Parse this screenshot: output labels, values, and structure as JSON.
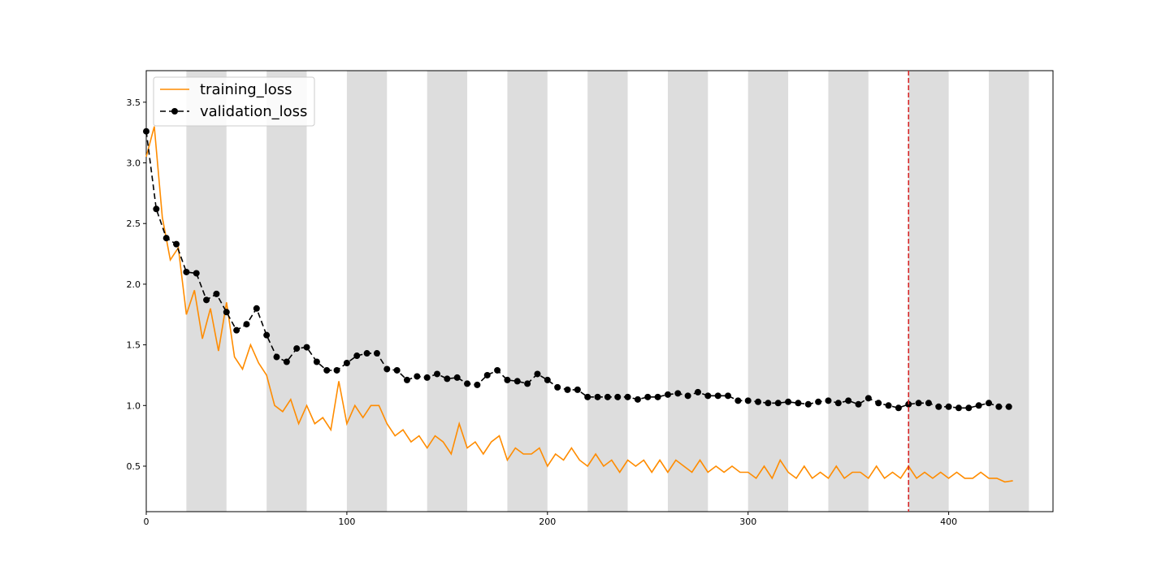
{
  "chart_data": {
    "type": "line",
    "xlim": [
      0,
      452
    ],
    "ylim": [
      0.125,
      3.76
    ],
    "xticks": [
      0,
      100,
      200,
      300,
      400
    ],
    "yticks": [
      {
        "value": 0.5,
        "label": "0.5"
      },
      {
        "value": 1,
        "label": "1.0"
      },
      {
        "value": 1.5,
        "label": "1.5"
      },
      {
        "value": 2,
        "label": "2.0"
      },
      {
        "value": 2.5,
        "label": "2.5"
      },
      {
        "value": 3,
        "label": "3.0"
      },
      {
        "value": 3.5,
        "label": "3.5"
      }
    ],
    "shaded_spans": [
      [
        20,
        40
      ],
      [
        60,
        80
      ],
      [
        100,
        120
      ],
      [
        140,
        160
      ],
      [
        180,
        200
      ],
      [
        220,
        240
      ],
      [
        260,
        280
      ],
      [
        300,
        320
      ],
      [
        340,
        360
      ],
      [
        380,
        400
      ],
      [
        420,
        440
      ]
    ],
    "shaded_color": "#dddddd",
    "vline": {
      "x": 380,
      "color": "#d62728"
    },
    "legend": "upper left",
    "series": [
      {
        "name": "training_loss",
        "color": "#ff8c00",
        "style": "solid",
        "x": [
          0,
          4,
          8,
          12,
          16,
          20,
          24,
          28,
          32,
          36,
          40,
          44,
          48,
          52,
          56,
          60,
          64,
          68,
          72,
          76,
          80,
          84,
          88,
          92,
          96,
          100,
          104,
          108,
          112,
          116,
          120,
          124,
          128,
          132,
          136,
          140,
          144,
          148,
          152,
          156,
          160,
          164,
          168,
          172,
          176,
          180,
          184,
          188,
          192,
          196,
          200,
          204,
          208,
          212,
          216,
          220,
          224,
          228,
          232,
          236,
          240,
          244,
          248,
          252,
          256,
          260,
          264,
          268,
          272,
          276,
          280,
          284,
          288,
          292,
          296,
          300,
          304,
          308,
          312,
          316,
          320,
          324,
          328,
          332,
          336,
          340,
          344,
          348,
          352,
          356,
          360,
          364,
          368,
          372,
          376,
          380,
          384,
          388,
          392,
          396,
          400,
          404,
          408,
          412,
          416,
          420,
          424,
          428,
          432
        ],
        "values": [
          3.05,
          3.3,
          2.55,
          2.2,
          2.3,
          1.75,
          1.95,
          1.55,
          1.8,
          1.45,
          1.85,
          1.4,
          1.3,
          1.5,
          1.35,
          1.25,
          1.0,
          0.95,
          1.05,
          0.85,
          1.0,
          0.85,
          0.9,
          0.8,
          1.2,
          0.85,
          1.0,
          0.9,
          1.0,
          1.0,
          0.85,
          0.75,
          0.8,
          0.7,
          0.75,
          0.65,
          0.75,
          0.7,
          0.6,
          0.85,
          0.65,
          0.7,
          0.6,
          0.7,
          0.75,
          0.55,
          0.65,
          0.6,
          0.6,
          0.65,
          0.5,
          0.6,
          0.55,
          0.65,
          0.55,
          0.5,
          0.6,
          0.5,
          0.55,
          0.45,
          0.55,
          0.5,
          0.55,
          0.45,
          0.55,
          0.45,
          0.55,
          0.5,
          0.45,
          0.55,
          0.45,
          0.5,
          0.45,
          0.5,
          0.45,
          0.45,
          0.4,
          0.5,
          0.4,
          0.55,
          0.45,
          0.4,
          0.5,
          0.4,
          0.45,
          0.4,
          0.5,
          0.4,
          0.45,
          0.45,
          0.4,
          0.5,
          0.4,
          0.45,
          0.4,
          0.5,
          0.4,
          0.45,
          0.4,
          0.45,
          0.4,
          0.45,
          0.4,
          0.4,
          0.45,
          0.4,
          0.4,
          0.37,
          0.38
        ]
      },
      {
        "name": "validation_loss",
        "color": "#000000",
        "style": "dashed-marker",
        "x": [
          0,
          5,
          10,
          15,
          20,
          25,
          30,
          35,
          40,
          45,
          50,
          55,
          60,
          65,
          70,
          75,
          80,
          85,
          90,
          95,
          100,
          105,
          110,
          115,
          120,
          125,
          130,
          135,
          140,
          145,
          150,
          155,
          160,
          165,
          170,
          175,
          180,
          185,
          190,
          195,
          200,
          205,
          210,
          215,
          220,
          225,
          230,
          235,
          240,
          245,
          250,
          255,
          260,
          265,
          270,
          275,
          280,
          285,
          290,
          295,
          300,
          305,
          310,
          315,
          320,
          325,
          330,
          335,
          340,
          345,
          350,
          355,
          360,
          365,
          370,
          375,
          380,
          385,
          390,
          395,
          400,
          405,
          410,
          415,
          420,
          425,
          430
        ],
        "values": [
          3.26,
          2.62,
          2.38,
          2.33,
          2.1,
          2.09,
          1.87,
          1.92,
          1.77,
          1.62,
          1.67,
          1.8,
          1.58,
          1.4,
          1.36,
          1.47,
          1.48,
          1.36,
          1.29,
          1.29,
          1.35,
          1.41,
          1.43,
          1.43,
          1.3,
          1.29,
          1.21,
          1.24,
          1.23,
          1.26,
          1.22,
          1.23,
          1.18,
          1.17,
          1.25,
          1.29,
          1.21,
          1.2,
          1.18,
          1.26,
          1.21,
          1.15,
          1.13,
          1.13,
          1.07,
          1.07,
          1.07,
          1.07,
          1.07,
          1.05,
          1.07,
          1.07,
          1.09,
          1.1,
          1.08,
          1.11,
          1.08,
          1.08,
          1.08,
          1.04,
          1.04,
          1.03,
          1.02,
          1.02,
          1.03,
          1.02,
          1.01,
          1.03,
          1.04,
          1.02,
          1.04,
          1.01,
          1.06,
          1.02,
          1.0,
          0.98,
          1.01,
          1.02,
          1.02,
          0.99,
          0.99,
          0.98,
          0.98,
          1.0,
          1.02,
          0.99,
          0.99
        ]
      }
    ]
  }
}
